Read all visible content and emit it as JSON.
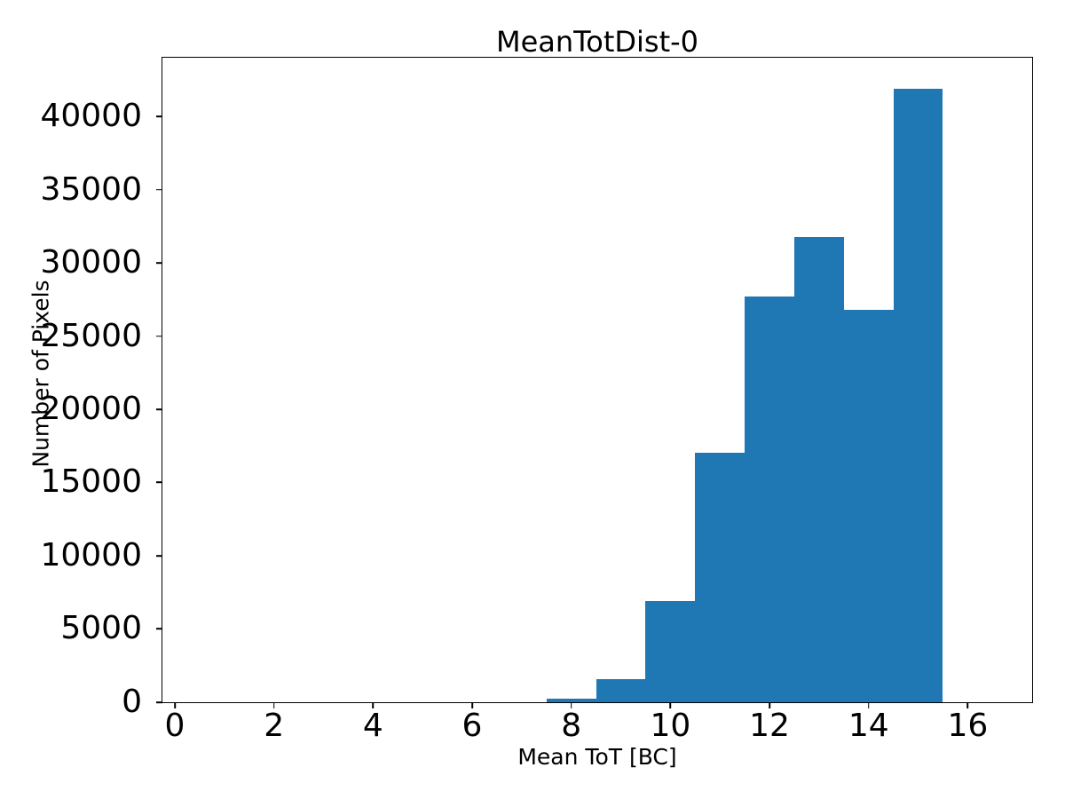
{
  "figure": {
    "background": "#ffffff"
  },
  "chart_data": {
    "type": "bar",
    "variant": "histogram",
    "title": "MeanTotDist-0",
    "xlabel": "Mean ToT [BC]",
    "ylabel": "Number of Pixels",
    "bin_edges": [
      7.5,
      8.5,
      9.5,
      10.5,
      11.5,
      12.5,
      13.5,
      14.5,
      15.5
    ],
    "values": [
      220,
      1580,
      6930,
      17050,
      27690,
      31730,
      26760,
      41880
    ],
    "x_ticks": [
      0,
      2,
      4,
      6,
      8,
      10,
      12,
      14,
      16
    ],
    "x_tick_labels": [
      "0",
      "2",
      "4",
      "6",
      "8",
      "10",
      "12",
      "14",
      "16"
    ],
    "y_ticks": [
      0,
      5000,
      10000,
      15000,
      20000,
      25000,
      30000,
      35000,
      40000
    ],
    "y_tick_labels": [
      "0",
      "5000",
      "10000",
      "15000",
      "20000",
      "25000",
      "30000",
      "35000",
      "40000"
    ],
    "xlim": [
      -0.25,
      17.3
    ],
    "ylim": [
      0,
      44000
    ],
    "bar_color": "#1f77b4",
    "axis_color": "#000000",
    "grid": false,
    "legend": false
  }
}
